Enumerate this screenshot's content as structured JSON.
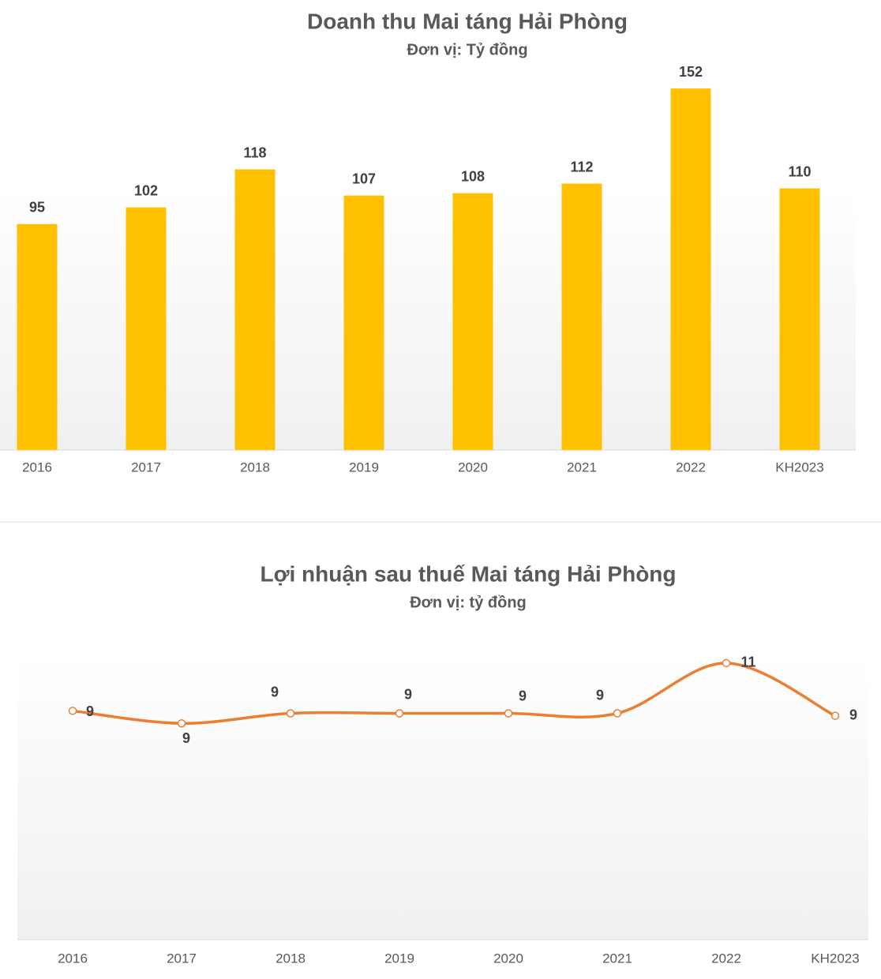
{
  "chart_data": [
    {
      "type": "bar",
      "title": "Doanh thu Mai táng Hải Phòng",
      "subtitle": "Đơn vị: Tỷ đồng",
      "categories": [
        "2016",
        "2017",
        "2018",
        "2019",
        "2020",
        "2021",
        "2022",
        "KH2023"
      ],
      "values": [
        95,
        102,
        118,
        107,
        108,
        112,
        152,
        110
      ],
      "color": "#FFC000",
      "ylim": [
        0,
        160
      ]
    },
    {
      "type": "line",
      "title": "Lợi nhuận sau thuế Mai táng Hải Phòng",
      "subtitle": "Đơn vị: tỷ đồng",
      "categories": [
        "2016",
        "2017",
        "2018",
        "2019",
        "2020",
        "2021",
        "2022",
        "KH2023"
      ],
      "values": [
        9.1,
        8.6,
        9.0,
        9.0,
        9.0,
        9.0,
        11.0,
        8.9
      ],
      "value_labels": [
        "9",
        "9",
        "9",
        "9",
        "9",
        "9",
        "11",
        "9"
      ],
      "color": "#ED7D31",
      "ylim": [
        0,
        12
      ]
    }
  ]
}
